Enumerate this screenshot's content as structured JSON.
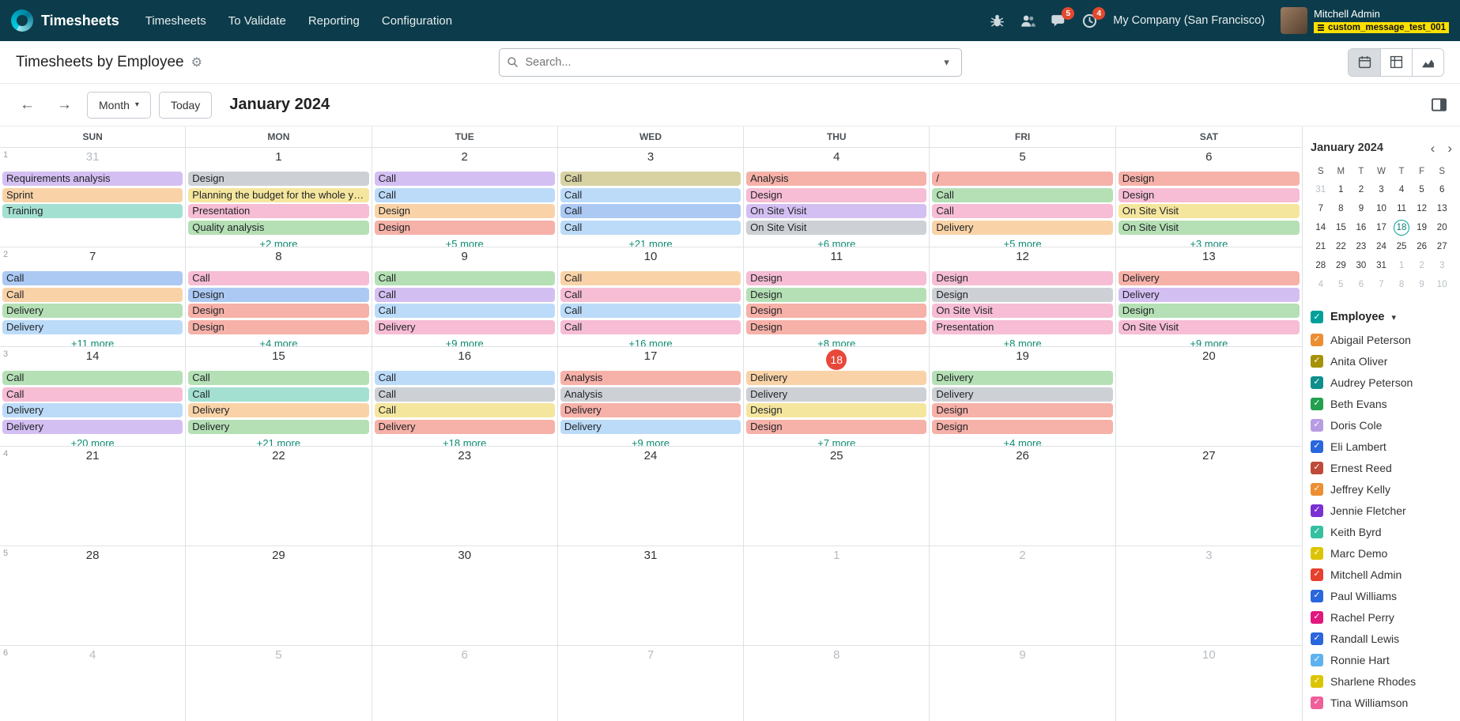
{
  "colors": {
    "topbar_bg": "#0c3c4b",
    "badge": "#e2492f",
    "tag_bg": "#f9e000",
    "more_link": "#0d8b72",
    "today_badge": "#e8483a",
    "filter_accent": "#00a09a",
    "border": "#dee2e6"
  },
  "topbar": {
    "app_name": "Timesheets",
    "menu": [
      "Timesheets",
      "To Validate",
      "Reporting",
      "Configuration"
    ],
    "icons": [
      "bug-icon",
      "employees-icon",
      "messages-icon",
      "activities-icon"
    ],
    "messages_badge": "5",
    "activities_badge": "4",
    "company": "My Company (San Francisco)",
    "user_name": "Mitchell Admin",
    "user_tag": "custom_message_test_001"
  },
  "toolbar": {
    "title": "Timesheets by Employee",
    "search_placeholder": "Search...",
    "views": [
      "calendar",
      "pivot",
      "graph"
    ],
    "active_view": "calendar"
  },
  "controls": {
    "prev_label": "←",
    "next_label": "→",
    "scale_label": "Month",
    "today_label": "Today",
    "period_title": "January 2024"
  },
  "event_palette": {
    "salmon": "#f6b1a8",
    "pink": "#f6bdd4",
    "peach": "#f9d3a7",
    "yellow": "#f5e69e",
    "green": "#b5e0b5",
    "teal": "#a4e0d1",
    "lightblue": "#bcdbf8",
    "blue": "#abc9f3",
    "purple": "#d4bff2",
    "gray": "#cdd1d5",
    "khaki": "#d8d2a2"
  },
  "calendar": {
    "day_headers": [
      "SUN",
      "MON",
      "TUE",
      "WED",
      "THU",
      "FRI",
      "SAT"
    ],
    "weeks": [
      {
        "week_number": "1",
        "days": [
          {
            "date": "31",
            "muted": true,
            "events": [
              {
                "label": "Requirements analysis",
                "color": "purple"
              },
              {
                "label": "Sprint",
                "color": "peach"
              },
              {
                "label": "Training",
                "color": "teal"
              }
            ],
            "more": ""
          },
          {
            "date": "1",
            "events": [
              {
                "label": "Design",
                "color": "gray"
              },
              {
                "label": "Planning the budget for the whole year",
                "color": "yellow"
              },
              {
                "label": "Presentation",
                "color": "pink"
              },
              {
                "label": "Quality analysis",
                "color": "green"
              }
            ],
            "more": "+2 more"
          },
          {
            "date": "2",
            "events": [
              {
                "label": "Call",
                "color": "purple"
              },
              {
                "label": "Call",
                "color": "lightblue"
              },
              {
                "label": "Design",
                "color": "peach"
              },
              {
                "label": "Design",
                "color": "salmon"
              }
            ],
            "more": "+5 more"
          },
          {
            "date": "3",
            "events": [
              {
                "label": "Call",
                "color": "khaki"
              },
              {
                "label": "Call",
                "color": "lightblue"
              },
              {
                "label": "Call",
                "color": "blue"
              },
              {
                "label": "Call",
                "color": "lightblue"
              }
            ],
            "more": "+21 more"
          },
          {
            "date": "4",
            "events": [
              {
                "label": "Analysis",
                "color": "salmon"
              },
              {
                "label": "Design",
                "color": "pink"
              },
              {
                "label": "On Site Visit",
                "color": "purple"
              },
              {
                "label": "On Site Visit",
                "color": "gray"
              }
            ],
            "more": "+6 more"
          },
          {
            "date": "5",
            "events": [
              {
                "label": "/",
                "color": "salmon"
              },
              {
                "label": "Call",
                "color": "green"
              },
              {
                "label": "Call",
                "color": "pink"
              },
              {
                "label": "Delivery",
                "color": "peach"
              }
            ],
            "more": "+5 more"
          },
          {
            "date": "6",
            "events": [
              {
                "label": "Design",
                "color": "salmon"
              },
              {
                "label": "Design",
                "color": "pink"
              },
              {
                "label": "On Site Visit",
                "color": "yellow"
              },
              {
                "label": "On Site Visit",
                "color": "green"
              }
            ],
            "more": "+3 more"
          }
        ]
      },
      {
        "week_number": "2",
        "days": [
          {
            "date": "7",
            "events": [
              {
                "label": "Call",
                "color": "blue"
              },
              {
                "label": "Call",
                "color": "peach"
              },
              {
                "label": "Delivery",
                "color": "green"
              },
              {
                "label": "Delivery",
                "color": "lightblue"
              }
            ],
            "more": "+11 more"
          },
          {
            "date": "8",
            "events": [
              {
                "label": "Call",
                "color": "pink"
              },
              {
                "label": "Design",
                "color": "blue"
              },
              {
                "label": "Design",
                "color": "salmon"
              },
              {
                "label": "Design",
                "color": "salmon"
              }
            ],
            "more": "+4 more"
          },
          {
            "date": "9",
            "events": [
              {
                "label": "Call",
                "color": "green"
              },
              {
                "label": "Call",
                "color": "purple"
              },
              {
                "label": "Call",
                "color": "lightblue"
              },
              {
                "label": "Delivery",
                "color": "pink"
              }
            ],
            "more": "+9 more"
          },
          {
            "date": "10",
            "events": [
              {
                "label": "Call",
                "color": "peach"
              },
              {
                "label": "Call",
                "color": "pink"
              },
              {
                "label": "Call",
                "color": "lightblue"
              },
              {
                "label": "Call",
                "color": "pink"
              }
            ],
            "more": "+16 more"
          },
          {
            "date": "11",
            "events": [
              {
                "label": "Design",
                "color": "pink"
              },
              {
                "label": "Design",
                "color": "green"
              },
              {
                "label": "Design",
                "color": "salmon"
              },
              {
                "label": "Design",
                "color": "salmon"
              }
            ],
            "more": "+8 more"
          },
          {
            "date": "12",
            "events": [
              {
                "label": "Design",
                "color": "pink"
              },
              {
                "label": "Design",
                "color": "gray"
              },
              {
                "label": "On Site Visit",
                "color": "pink"
              },
              {
                "label": "Presentation",
                "color": "pink"
              }
            ],
            "more": "+8 more"
          },
          {
            "date": "13",
            "events": [
              {
                "label": "Delivery",
                "color": "salmon"
              },
              {
                "label": "Delivery",
                "color": "purple"
              },
              {
                "label": "Design",
                "color": "green"
              },
              {
                "label": "On Site Visit",
                "color": "pink"
              }
            ],
            "more": "+9 more"
          }
        ]
      },
      {
        "week_number": "3",
        "days": [
          {
            "date": "14",
            "events": [
              {
                "label": "Call",
                "color": "green"
              },
              {
                "label": "Call",
                "color": "pink"
              },
              {
                "label": "Delivery",
                "color": "lightblue"
              },
              {
                "label": "Delivery",
                "color": "purple"
              }
            ],
            "more": "+20 more"
          },
          {
            "date": "15",
            "events": [
              {
                "label": "Call",
                "color": "green"
              },
              {
                "label": "Call",
                "color": "teal"
              },
              {
                "label": "Delivery",
                "color": "peach"
              },
              {
                "label": "Delivery",
                "color": "green"
              }
            ],
            "more": "+21 more"
          },
          {
            "date": "16",
            "events": [
              {
                "label": "Call",
                "color": "lightblue"
              },
              {
                "label": "Call",
                "color": "gray"
              },
              {
                "label": "Call",
                "color": "yellow"
              },
              {
                "label": "Delivery",
                "color": "salmon"
              }
            ],
            "more": "+18 more"
          },
          {
            "date": "17",
            "events": [
              {
                "label": "Analysis",
                "color": "salmon"
              },
              {
                "label": "Analysis",
                "color": "gray"
              },
              {
                "label": "Delivery",
                "color": "salmon"
              },
              {
                "label": "Delivery",
                "color": "lightblue"
              }
            ],
            "more": "+9 more"
          },
          {
            "date": "18",
            "today": true,
            "events": [
              {
                "label": "Delivery",
                "color": "peach"
              },
              {
                "label": "Delivery",
                "color": "gray"
              },
              {
                "label": "Design",
                "color": "yellow"
              },
              {
                "label": "Design",
                "color": "salmon"
              }
            ],
            "more": "+7 more"
          },
          {
            "date": "19",
            "events": [
              {
                "label": "Delivery",
                "color": "green"
              },
              {
                "label": "Delivery",
                "color": "gray"
              },
              {
                "label": "Design",
                "color": "salmon"
              },
              {
                "label": "Design",
                "color": "salmon"
              }
            ],
            "more": "+4 more"
          },
          {
            "date": "20",
            "events": [],
            "more": ""
          }
        ]
      },
      {
        "week_number": "4",
        "days": [
          {
            "date": "21",
            "events": [],
            "more": ""
          },
          {
            "date": "22",
            "events": [],
            "more": ""
          },
          {
            "date": "23",
            "events": [],
            "more": ""
          },
          {
            "date": "24",
            "events": [],
            "more": ""
          },
          {
            "date": "25",
            "events": [],
            "more": ""
          },
          {
            "date": "26",
            "events": [],
            "more": ""
          },
          {
            "date": "27",
            "events": [],
            "more": ""
          }
        ]
      },
      {
        "week_number": "5",
        "days": [
          {
            "date": "28",
            "events": [],
            "more": ""
          },
          {
            "date": "29",
            "events": [],
            "more": ""
          },
          {
            "date": "30",
            "events": [],
            "more": ""
          },
          {
            "date": "31",
            "events": [],
            "more": ""
          },
          {
            "date": "1",
            "muted": true,
            "events": [],
            "more": ""
          },
          {
            "date": "2",
            "muted": true,
            "events": [],
            "more": ""
          },
          {
            "date": "3",
            "muted": true,
            "events": [],
            "more": ""
          }
        ]
      },
      {
        "week_number": "6",
        "days": [
          {
            "date": "4",
            "muted": true,
            "events": [],
            "more": ""
          },
          {
            "date": "5",
            "muted": true,
            "events": [],
            "more": ""
          },
          {
            "date": "6",
            "muted": true,
            "events": [],
            "more": ""
          },
          {
            "date": "7",
            "muted": true,
            "events": [],
            "more": ""
          },
          {
            "date": "8",
            "muted": true,
            "events": [],
            "more": ""
          },
          {
            "date": "9",
            "muted": true,
            "events": [],
            "more": ""
          },
          {
            "date": "10",
            "muted": true,
            "events": [],
            "more": ""
          }
        ]
      }
    ]
  },
  "sidebar": {
    "mini_calendar": {
      "title": "January 2024",
      "prev_label": "‹",
      "next_label": "›",
      "day_letters": [
        "S",
        "M",
        "T",
        "W",
        "T",
        "F",
        "S"
      ],
      "rows": [
        [
          "31",
          "1",
          "2",
          "3",
          "4",
          "5",
          "6"
        ],
        [
          "7",
          "8",
          "9",
          "10",
          "11",
          "12",
          "13"
        ],
        [
          "14",
          "15",
          "16",
          "17",
          "18",
          "19",
          "20"
        ],
        [
          "21",
          "22",
          "23",
          "24",
          "25",
          "26",
          "27"
        ],
        [
          "28",
          "29",
          "30",
          "31",
          "1",
          "2",
          "3"
        ],
        [
          "4",
          "5",
          "6",
          "7",
          "8",
          "9",
          "10"
        ]
      ],
      "selected_day": "18"
    },
    "filter": {
      "label": "Employee",
      "accent": "#00a09a",
      "employees": [
        {
          "name": "Abigail Peterson",
          "color": "#ec8e33"
        },
        {
          "name": "Anita Oliver",
          "color": "#a79106"
        },
        {
          "name": "Audrey Peterson",
          "color": "#0e8f8c"
        },
        {
          "name": "Beth Evans",
          "color": "#23a04e"
        },
        {
          "name": "Doris Cole",
          "color": "#b79ce4"
        },
        {
          "name": "Eli Lambert",
          "color": "#2a66dd"
        },
        {
          "name": "Ernest Reed",
          "color": "#bf4a3a"
        },
        {
          "name": "Jeffrey Kelly",
          "color": "#ec8e33"
        },
        {
          "name": "Jennie Fletcher",
          "color": "#7a30d2"
        },
        {
          "name": "Keith Byrd",
          "color": "#35c0a2"
        },
        {
          "name": "Marc Demo",
          "color": "#ddc402"
        },
        {
          "name": "Mitchell Admin",
          "color": "#e6402e"
        },
        {
          "name": "Paul Williams",
          "color": "#2a66dd"
        },
        {
          "name": "Rachel Perry",
          "color": "#e2187e"
        },
        {
          "name": "Randall Lewis",
          "color": "#2a66dd"
        },
        {
          "name": "Ronnie Hart",
          "color": "#5eb2ef"
        },
        {
          "name": "Sharlene Rhodes",
          "color": "#ddc402"
        },
        {
          "name": "Tina Williamson",
          "color": "#ef5f99"
        }
      ]
    }
  }
}
